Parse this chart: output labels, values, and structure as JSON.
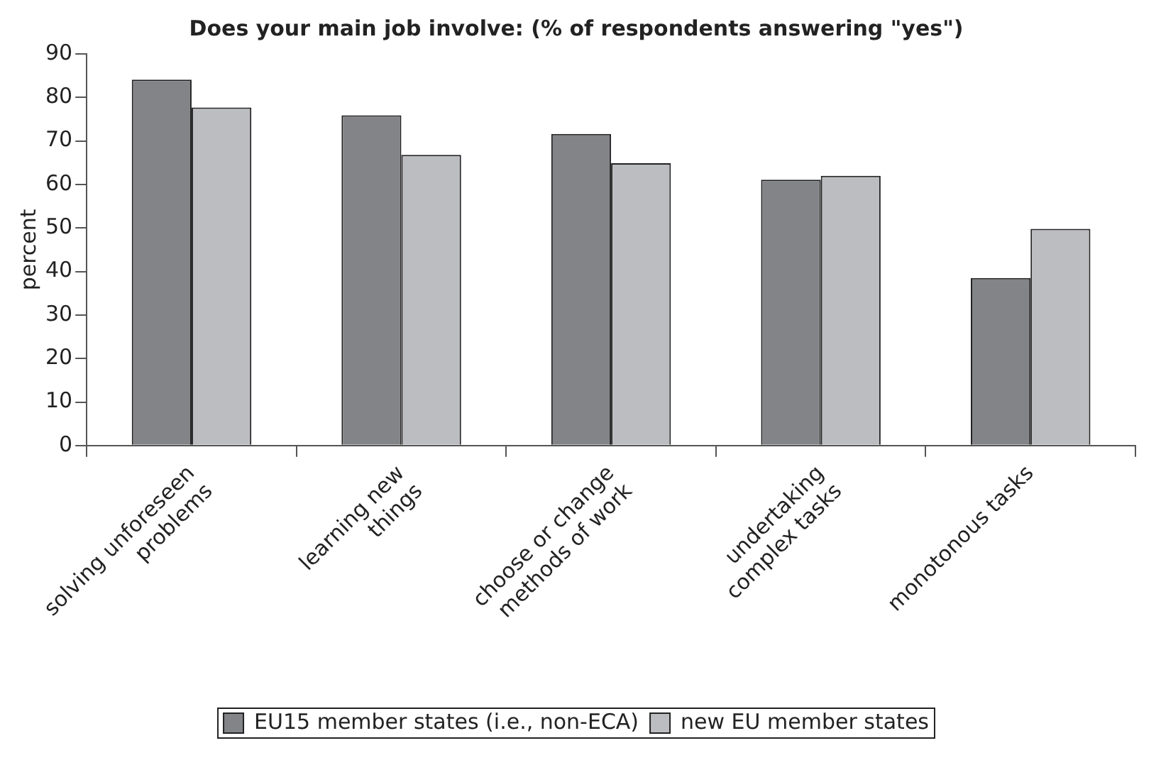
{
  "chart_data": {
    "type": "bar",
    "title": "Does your main job involve: (% of respondents answering \"yes\")",
    "ylabel": "percent",
    "categories": [
      "solving unforeseen problems",
      "learning new things",
      "choose or change methods of work",
      "undertaking complex tasks",
      "monotonous tasks"
    ],
    "series": [
      {
        "name": "EU15 member states (i.e., non-ECA)",
        "color": "#838488",
        "values": [
          84.1,
          75.9,
          71.6,
          61.1,
          38.5
        ]
      },
      {
        "name": "new EU member states",
        "color": "#bcbdc1",
        "values": [
          77.7,
          66.8,
          64.9,
          62.0,
          49.8
        ]
      }
    ],
    "ylim": [
      0,
      90
    ],
    "yticks": [
      0,
      10,
      20,
      30,
      40,
      50,
      60,
      70,
      80,
      90
    ],
    "grid": false,
    "legend": "bottom"
  }
}
